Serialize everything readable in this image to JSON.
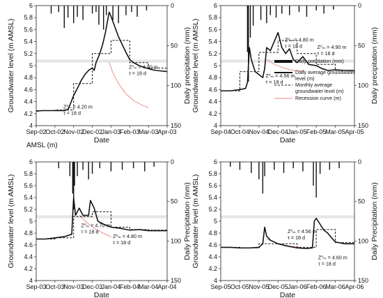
{
  "stray_label": "AMSL (m)",
  "legend": {
    "precip": "Daily precitation (mm)",
    "daily_line1": "Daily average groundwater",
    "daily_line2": "level (m)",
    "monthly_line1": "Monthly average",
    "monthly_line2": "groundwater level (m)",
    "recession": "Recession curve (m)"
  },
  "chart_data": [
    {
      "id": "tl",
      "type": "line",
      "xlabel": "Date",
      "ylabel": "Groundwater level (m AMSL)",
      "ylabel2": "Daily precipitation (mm)",
      "ylim": [
        4.0,
        6.0
      ],
      "yticks": [
        "4",
        "4.2",
        "4.4",
        "4.6",
        "4.8",
        "5",
        "5.2",
        "5.4",
        "5.6",
        "5.8",
        "6"
      ],
      "y2lim": [
        0,
        150
      ],
      "y2ticks": [
        "0",
        "50",
        "100",
        "150"
      ],
      "xticks": [
        "Sep-02",
        "Oct-02",
        "Nov-02",
        "Dec-02",
        "Jan-03",
        "Feb-03",
        "Mar-03",
        "Apr-03"
      ],
      "band": [
        5.05,
        5.1
      ],
      "daily": [
        [
          0.0,
          4.24
        ],
        [
          0.3,
          4.25
        ],
        [
          0.8,
          4.25
        ],
        [
          1.2,
          4.25
        ],
        [
          1.5,
          4.25
        ],
        [
          1.7,
          4.27
        ],
        [
          1.85,
          4.38
        ],
        [
          2.0,
          4.5
        ],
        [
          2.2,
          4.62
        ],
        [
          2.4,
          4.75
        ],
        [
          2.6,
          4.85
        ],
        [
          2.8,
          4.92
        ],
        [
          3.0,
          4.96
        ],
        [
          3.1,
          4.92
        ],
        [
          3.2,
          5.05
        ],
        [
          3.4,
          5.2
        ],
        [
          3.55,
          5.35
        ],
        [
          3.7,
          5.55
        ],
        [
          3.8,
          5.72
        ],
        [
          3.9,
          5.89
        ],
        [
          4.0,
          5.82
        ],
        [
          4.2,
          5.65
        ],
        [
          4.4,
          5.48
        ],
        [
          4.6,
          5.35
        ],
        [
          4.8,
          5.22
        ],
        [
          5.0,
          5.1
        ],
        [
          5.2,
          5.05
        ],
        [
          5.5,
          5.0
        ],
        [
          5.8,
          4.97
        ],
        [
          6.1,
          4.94
        ],
        [
          6.4,
          4.92
        ],
        [
          6.7,
          4.91
        ],
        [
          7.0,
          4.9
        ]
      ],
      "monthly": [
        [
          0.0,
          4.25
        ],
        [
          1.0,
          4.25
        ],
        [
          1.0,
          4.26
        ],
        [
          2.0,
          4.26
        ],
        [
          2.0,
          4.7
        ],
        [
          3.0,
          4.7
        ],
        [
          3.0,
          5.2
        ],
        [
          4.0,
          5.2
        ],
        [
          4.0,
          5.42
        ],
        [
          5.0,
          5.42
        ],
        [
          5.0,
          5.05
        ],
        [
          6.0,
          5.05
        ],
        [
          6.0,
          4.96
        ],
        [
          7.0,
          4.96
        ]
      ],
      "recession": [
        [
          3.9,
          5.05
        ],
        [
          4.1,
          4.88
        ],
        [
          4.4,
          4.7
        ],
        [
          4.8,
          4.53
        ],
        [
          5.2,
          4.42
        ],
        [
          5.6,
          4.35
        ],
        [
          6.0,
          4.3
        ]
      ],
      "precip": [
        [
          0.8,
          10
        ],
        [
          1.2,
          8
        ],
        [
          1.5,
          28
        ],
        [
          1.7,
          15
        ],
        [
          2.0,
          22
        ],
        [
          2.2,
          14
        ],
        [
          2.5,
          18
        ],
        [
          3.0,
          10
        ],
        [
          3.2,
          8
        ],
        [
          3.35,
          24
        ],
        [
          3.6,
          30
        ],
        [
          3.75,
          12
        ],
        [
          4.1,
          18
        ],
        [
          4.4,
          22
        ],
        [
          4.8,
          12
        ],
        [
          5.1,
          8
        ],
        [
          5.4,
          14
        ],
        [
          5.9,
          6
        ]
      ],
      "annotations": [
        {
          "x": 1.45,
          "y": 4.285,
          "lines": [
            "Z⁰ₘ = 4.20 m",
            "τ = 18 d"
          ]
        },
        {
          "x": 4.95,
          "y": 4.95,
          "lines": [
            "Z⁰ₘ = 4.90 m",
            "τ = 18 d"
          ]
        }
      ]
    },
    {
      "id": "tr",
      "type": "line",
      "xlabel": "Date",
      "ylabel": "Groundwater level  (m AMSL)",
      "ylabel2": "Daily precipitation (mm)",
      "ylim": [
        4.0,
        6.0
      ],
      "yticks": [
        "4",
        "4.2",
        "4.4",
        "4.6",
        "4.8",
        "5",
        "5.2",
        "5.4",
        "5.6",
        "5.8",
        "6"
      ],
      "y2lim": [
        0,
        150
      ],
      "y2ticks": [
        "0",
        "50",
        "100",
        "150"
      ],
      "xticks": [
        "Sep-04",
        "Oct-04",
        "Nov-04",
        "Dec-04",
        "Jan-05",
        "Feb-05",
        "Mar-05",
        "Apr-05"
      ],
      "band": [
        5.05,
        5.1
      ],
      "daily": [
        [
          0.0,
          4.58
        ],
        [
          0.5,
          4.58
        ],
        [
          1.0,
          4.6
        ],
        [
          1.3,
          4.62
        ],
        [
          1.4,
          4.72
        ],
        [
          1.5,
          5.3
        ],
        [
          1.6,
          5.1
        ],
        [
          1.8,
          4.9
        ],
        [
          2.0,
          4.85
        ],
        [
          2.2,
          4.8
        ],
        [
          2.3,
          4.95
        ],
        [
          2.4,
          5.3
        ],
        [
          2.6,
          5.25
        ],
        [
          2.8,
          5.4
        ],
        [
          3.0,
          5.55
        ],
        [
          3.2,
          5.3
        ],
        [
          3.4,
          5.2
        ],
        [
          3.6,
          5.28
        ],
        [
          3.8,
          5.1
        ],
        [
          4.0,
          5.05
        ],
        [
          4.3,
          5.15
        ],
        [
          4.6,
          5.02
        ],
        [
          5.0,
          5.0
        ],
        [
          5.3,
          4.95
        ],
        [
          5.6,
          4.92
        ],
        [
          6.0,
          4.93
        ],
        [
          6.5,
          4.92
        ],
        [
          7.0,
          4.92
        ]
      ],
      "monthly": [
        [
          0.0,
          4.58
        ],
        [
          1.0,
          4.58
        ],
        [
          1.0,
          4.9
        ],
        [
          2.0,
          4.9
        ],
        [
          2.0,
          5.22
        ],
        [
          3.0,
          5.22
        ],
        [
          3.0,
          5.42
        ],
        [
          4.0,
          5.42
        ],
        [
          4.0,
          5.2
        ],
        [
          5.0,
          5.2
        ],
        [
          5.0,
          5.02
        ],
        [
          6.0,
          5.02
        ],
        [
          6.0,
          4.92
        ],
        [
          7.0,
          4.92
        ]
      ],
      "recession": [
        [
          2.4,
          5.1
        ],
        [
          2.8,
          5.02
        ],
        [
          3.3,
          4.96
        ],
        [
          3.8,
          4.92
        ],
        [
          4.4,
          4.91
        ]
      ],
      "precip": [
        [
          1.4,
          58
        ],
        [
          1.45,
          95
        ],
        [
          1.55,
          40
        ],
        [
          1.7,
          25
        ],
        [
          2.1,
          18
        ],
        [
          2.4,
          22
        ],
        [
          2.6,
          12
        ],
        [
          2.9,
          15
        ],
        [
          3.2,
          10
        ],
        [
          3.6,
          12
        ],
        [
          4.1,
          8
        ],
        [
          4.5,
          14
        ],
        [
          5.0,
          6
        ],
        [
          5.4,
          10
        ],
        [
          5.9,
          5
        ]
      ],
      "annotations": [
        {
          "x": 2.35,
          "y": 4.8,
          "lines": [
            "Z⁰ₘ = 4.56 m",
            "τ = 18 d"
          ]
        },
        {
          "x": 3.35,
          "y": 5.4,
          "lines": [
            "Z⁰ₘ = 4.80 m",
            "τ = 18 d"
          ]
        },
        {
          "x": 5.05,
          "y": 5.28,
          "lines": [
            "Z⁰ₘ = 4.90 m",
            "τ = 18 d"
          ]
        }
      ]
    },
    {
      "id": "bl",
      "type": "line",
      "xlabel": "Date",
      "ylabel": "Groundwater level  (m AMSL)",
      "ylabel2": "Daily Precipitation (mm)",
      "ylim": [
        4.0,
        6.0
      ],
      "yticks": [
        "4",
        "4.2",
        "4.4",
        "4.6",
        "4.8",
        "5",
        "5.2",
        "5.4",
        "5.6",
        "5.8",
        "6"
      ],
      "y2lim": [
        0,
        150
      ],
      "y2ticks": [
        "0",
        "50",
        "100",
        "150"
      ],
      "xticks": [
        "Sep-03",
        "Oct-03",
        "Nov-03",
        "Dec-03",
        "Jan-04",
        "Feb-04",
        "Mar-04",
        "Apr-04"
      ],
      "band": [
        5.05,
        5.1
      ],
      "daily": [
        [
          0.0,
          4.7
        ],
        [
          0.5,
          4.7
        ],
        [
          1.0,
          4.72
        ],
        [
          1.5,
          4.74
        ],
        [
          1.9,
          4.78
        ],
        [
          2.0,
          5.4
        ],
        [
          2.1,
          5.1
        ],
        [
          2.3,
          5.22
        ],
        [
          2.5,
          5.1
        ],
        [
          2.8,
          5.1
        ],
        [
          2.9,
          5.35
        ],
        [
          3.1,
          5.22
        ],
        [
          3.3,
          5.0
        ],
        [
          3.6,
          4.95
        ],
        [
          4.0,
          4.9
        ],
        [
          4.5,
          4.88
        ],
        [
          5.0,
          4.85
        ],
        [
          5.5,
          4.86
        ],
        [
          6.0,
          4.84
        ],
        [
          6.5,
          4.84
        ],
        [
          7.0,
          4.84
        ]
      ],
      "monthly": [
        [
          0.0,
          4.7
        ],
        [
          1.0,
          4.7
        ],
        [
          1.0,
          4.72
        ],
        [
          2.0,
          4.72
        ],
        [
          2.0,
          5.08
        ],
        [
          3.0,
          5.08
        ],
        [
          3.0,
          5.16
        ],
        [
          4.0,
          5.16
        ],
        [
          4.0,
          4.9
        ],
        [
          5.0,
          4.9
        ],
        [
          5.0,
          4.86
        ],
        [
          6.0,
          4.86
        ],
        [
          6.0,
          4.85
        ],
        [
          7.0,
          4.85
        ]
      ],
      "recession": [
        [
          2.3,
          5.1
        ],
        [
          2.7,
          4.98
        ],
        [
          3.2,
          4.86
        ],
        [
          3.7,
          4.78
        ],
        [
          4.0,
          4.74
        ]
      ],
      "precip": [
        [
          1.2,
          8
        ],
        [
          1.8,
          18
        ],
        [
          1.95,
          40
        ],
        [
          2.0,
          60
        ],
        [
          2.05,
          30
        ],
        [
          2.2,
          18
        ],
        [
          2.5,
          10
        ],
        [
          2.8,
          22
        ],
        [
          3.0,
          15
        ],
        [
          3.4,
          8
        ],
        [
          4.0,
          12
        ],
        [
          4.6,
          10
        ],
        [
          5.2,
          8
        ],
        [
          5.8,
          12
        ],
        [
          6.3,
          6
        ]
      ],
      "annotations": [
        {
          "x": 2.4,
          "y": 4.9,
          "lines": [
            "Z⁰ₘ = 4.70 m",
            "τ = 18 d"
          ]
        },
        {
          "x": 4.1,
          "y": 4.72,
          "lines": [
            "Z⁰ₘ = 4.80 m",
            "τ = 18 d"
          ]
        }
      ]
    },
    {
      "id": "br",
      "type": "line",
      "xlabel": "Date",
      "ylabel": "Groundwater level  (m AMSL)",
      "ylabel2": "Daily Precipitation (mm)",
      "ylim": [
        4.0,
        6.0
      ],
      "yticks": [
        "4",
        "4.2",
        "4.4",
        "4.6",
        "4.8",
        "5",
        "5.2",
        "5.4",
        "5.6",
        "5.8",
        "6"
      ],
      "y2lim": [
        0,
        150
      ],
      "y2ticks": [
        "0",
        "50",
        "100",
        "150"
      ],
      "xticks": [
        "Sep-05",
        "Oct-05",
        "Nov-05",
        "Dec-05",
        "Jan-06",
        "Feb-06",
        "Mar-06",
        "Apr-06"
      ],
      "band": [
        5.05,
        5.1
      ],
      "daily": [
        [
          0.0,
          4.56
        ],
        [
          0.5,
          4.56
        ],
        [
          1.0,
          4.55
        ],
        [
          1.5,
          4.55
        ],
        [
          2.0,
          4.56
        ],
        [
          2.2,
          4.62
        ],
        [
          2.3,
          4.9
        ],
        [
          2.4,
          4.75
        ],
        [
          2.6,
          4.68
        ],
        [
          3.0,
          4.62
        ],
        [
          3.5,
          4.58
        ],
        [
          4.0,
          4.55
        ],
        [
          4.5,
          4.54
        ],
        [
          4.8,
          4.55
        ],
        [
          4.9,
          5.0
        ],
        [
          5.0,
          5.05
        ],
        [
          5.2,
          4.95
        ],
        [
          5.4,
          4.85
        ],
        [
          5.6,
          4.8
        ],
        [
          5.8,
          4.72
        ],
        [
          6.0,
          4.65
        ],
        [
          6.5,
          4.62
        ],
        [
          7.0,
          4.62
        ]
      ],
      "monthly": [
        [
          0.0,
          4.56
        ],
        [
          1.0,
          4.56
        ],
        [
          1.0,
          4.55
        ],
        [
          2.0,
          4.55
        ],
        [
          2.0,
          4.62
        ],
        [
          3.0,
          4.62
        ],
        [
          3.0,
          4.62
        ],
        [
          4.0,
          4.62
        ],
        [
          4.0,
          4.56
        ],
        [
          5.0,
          4.56
        ],
        [
          5.0,
          4.86
        ],
        [
          6.0,
          4.86
        ],
        [
          6.0,
          4.64
        ],
        [
          7.0,
          4.64
        ]
      ],
      "recession": [
        [
          2.4,
          4.7
        ],
        [
          3.0,
          4.62
        ],
        [
          3.6,
          4.58
        ],
        [
          4.2,
          4.56
        ]
      ],
      "precip": [
        [
          0.5,
          6
        ],
        [
          1.0,
          10
        ],
        [
          1.6,
          14
        ],
        [
          2.0,
          22
        ],
        [
          2.2,
          40
        ],
        [
          2.3,
          18
        ],
        [
          2.8,
          10
        ],
        [
          3.3,
          14
        ],
        [
          3.8,
          8
        ],
        [
          4.3,
          12
        ],
        [
          4.85,
          30
        ],
        [
          5.0,
          45
        ],
        [
          5.2,
          15
        ],
        [
          5.7,
          10
        ],
        [
          6.2,
          8
        ]
      ],
      "annotations": [
        {
          "x": 3.5,
          "y": 4.8,
          "lines": [
            "Z⁰ₘ = 4.56 m",
            "τ = 18 d"
          ]
        },
        {
          "x": 5.1,
          "y": 4.36,
          "lines": [
            "Z⁰ₘ = 4.60 m",
            "τ = 18 d"
          ]
        }
      ]
    }
  ]
}
